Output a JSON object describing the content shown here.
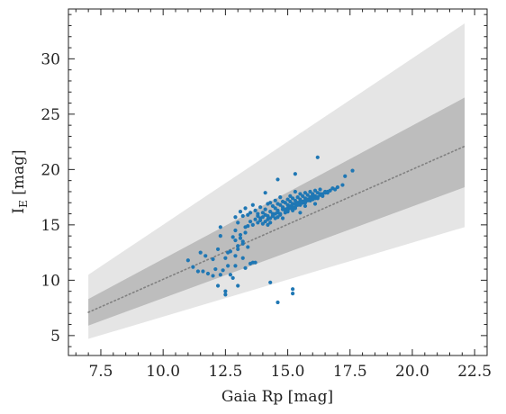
{
  "chart_data": {
    "type": "scatter",
    "xlabel": "Gaia Rp [mag]",
    "ylabel": "I",
    "ylabel_subscript": "E",
    "ylabel_unit": " [mag]",
    "xlim": [
      6.2,
      23.0
    ],
    "ylim": [
      3.2,
      34.5
    ],
    "xticks": [
      7.5,
      10.0,
      12.5,
      15.0,
      17.5,
      20.0,
      22.5
    ],
    "xtick_labels": [
      "7.5",
      "10.0",
      "12.5",
      "15.0",
      "17.5",
      "20.0",
      "22.5"
    ],
    "yticks": [
      5,
      10,
      15,
      20,
      25,
      30
    ],
    "ytick_labels": [
      "5",
      "10",
      "15",
      "20",
      "25",
      "30"
    ],
    "grid": false,
    "colors": {
      "points": "#1f77b4",
      "outer_band": "#e5e5e5",
      "inner_band": "#bdbdbd",
      "trend_line": "#808080"
    },
    "trend_line": {
      "style": "dotted",
      "x": [
        7.0,
        22.1
      ],
      "y": [
        7.1,
        22.1
      ]
    },
    "inner_band": {
      "x": [
        7.0,
        22.1
      ],
      "upper": [
        8.3,
        26.5
      ],
      "lower": [
        5.9,
        18.4
      ]
    },
    "outer_band": {
      "x": [
        7.0,
        22.1
      ],
      "upper": [
        10.5,
        33.2
      ],
      "lower": [
        4.7,
        14.8
      ]
    },
    "series": [
      {
        "x": [
          11.0,
          11.2,
          11.4,
          11.5,
          11.7,
          11.8,
          12.0,
          12.1,
          12.2,
          12.3,
          12.3,
          12.5,
          12.5,
          12.6,
          12.7,
          12.8,
          12.9,
          12.9,
          13.0,
          13.0,
          13.1,
          13.1,
          13.2,
          13.2,
          13.3,
          13.3,
          13.4,
          13.4,
          13.5,
          13.5,
          13.6,
          13.6,
          13.7,
          13.7,
          13.8,
          13.8,
          13.9,
          13.9,
          14.0,
          14.0,
          14.1,
          14.1,
          14.2,
          14.2,
          14.3,
          14.3,
          14.4,
          14.4,
          14.5,
          14.5,
          14.6,
          14.6,
          14.7,
          14.7,
          14.8,
          14.8,
          14.9,
          14.9,
          15.0,
          15.0,
          15.1,
          15.1,
          15.2,
          15.2,
          15.3,
          15.3,
          15.4,
          15.4,
          15.5,
          15.5,
          15.6,
          15.6,
          15.7,
          15.7,
          15.8,
          15.8,
          15.9,
          15.9,
          16.0,
          16.0,
          16.1,
          16.1,
          16.2,
          16.2,
          16.3,
          16.3,
          16.4,
          16.5,
          16.6,
          16.7,
          16.8,
          16.9,
          17.0,
          17.2,
          17.3,
          17.6,
          14.5,
          14.6,
          15.1,
          15.4,
          15.7,
          16.2,
          13.9,
          14.3,
          14.9,
          15.3,
          15.8,
          16.1,
          14.2,
          14.6,
          15.0,
          15.5,
          15.9,
          16.4,
          14.7,
          15.2,
          15.6,
          16.0,
          14.1,
          14.8,
          15.3,
          15.7,
          16.3,
          14.4,
          15.0,
          15.5,
          14.0,
          14.6,
          15.2,
          15.8,
          16.6,
          14.9,
          15.4,
          16.0,
          14.3,
          15.1,
          15.6,
          16.2,
          14.7,
          15.3,
          15.9,
          14.5,
          15.0,
          15.7,
          13.8,
          14.2,
          14.8,
          15.5,
          16.1,
          16.5,
          13.1,
          13.4,
          13.0,
          12.6,
          13.2,
          13.6,
          12.9,
          13.3,
          12.7,
          13.5,
          12.4,
          12.8,
          12.0,
          12.2,
          11.6,
          12.5,
          13.0,
          12.9,
          13.3,
          12.3,
          13.7,
          13.2,
          12.9,
          14.1,
          14.6,
          15.3,
          15.2,
          16.2
        ],
        "y": [
          11.8,
          11.2,
          10.8,
          12.5,
          12.2,
          10.6,
          11.9,
          11.0,
          12.8,
          14.8,
          10.5,
          12.0,
          9.0,
          11.3,
          12.6,
          13.9,
          12.2,
          14.5,
          13.1,
          15.2,
          14.1,
          16.2,
          13.5,
          15.8,
          14.8,
          16.5,
          14.9,
          15.9,
          15.3,
          16.1,
          15.0,
          16.8,
          15.5,
          16.3,
          15.8,
          16.0,
          15.6,
          16.6,
          16.1,
          15.7,
          16.4,
          15.9,
          15.8,
          16.9,
          16.2,
          17.0,
          16.0,
          16.7,
          16.5,
          17.2,
          16.3,
          16.9,
          16.8,
          17.5,
          16.6,
          17.1,
          17.0,
          16.4,
          17.3,
          16.8,
          17.1,
          17.6,
          16.9,
          17.4,
          17.2,
          18.0,
          17.0,
          17.5,
          17.3,
          17.8,
          17.1,
          17.6,
          17.4,
          17.9,
          17.2,
          17.7,
          17.5,
          18.0,
          17.3,
          17.8,
          17.6,
          18.1,
          17.4,
          17.9,
          17.7,
          18.2,
          17.8,
          18.0,
          17.9,
          18.1,
          18.3,
          18.2,
          18.4,
          18.6,
          19.4,
          19.9,
          16.0,
          16.2,
          16.7,
          16.9,
          17.0,
          17.5,
          15.4,
          15.6,
          16.1,
          16.5,
          17.3,
          17.4,
          15.5,
          16.1,
          16.3,
          16.8,
          17.2,
          17.6,
          15.9,
          16.6,
          17.0,
          17.7,
          15.3,
          16.4,
          16.9,
          17.2,
          17.8,
          15.8,
          16.5,
          17.1,
          15.1,
          15.7,
          16.3,
          17.3,
          18.0,
          16.3,
          16.8,
          17.4,
          15.2,
          16.5,
          17.0,
          17.5,
          16.0,
          16.6,
          17.2,
          15.6,
          16.2,
          16.7,
          15.2,
          15.0,
          15.6,
          16.1,
          16.9,
          17.9,
          13.8,
          13.0,
          12.8,
          12.5,
          12.0,
          11.6,
          11.3,
          11.1,
          10.5,
          11.5,
          10.9,
          10.2,
          10.4,
          9.5,
          10.8,
          8.7,
          9.5,
          13.6,
          14.3,
          14.0,
          11.6,
          13.3,
          15.7,
          17.9,
          19.1,
          19.6,
          8.8,
          21.1
        ]
      }
    ],
    "outliers": {
      "x": [
        14.3,
        14.6,
        15.2
      ],
      "y": [
        9.8,
        8.0,
        9.2
      ]
    }
  }
}
